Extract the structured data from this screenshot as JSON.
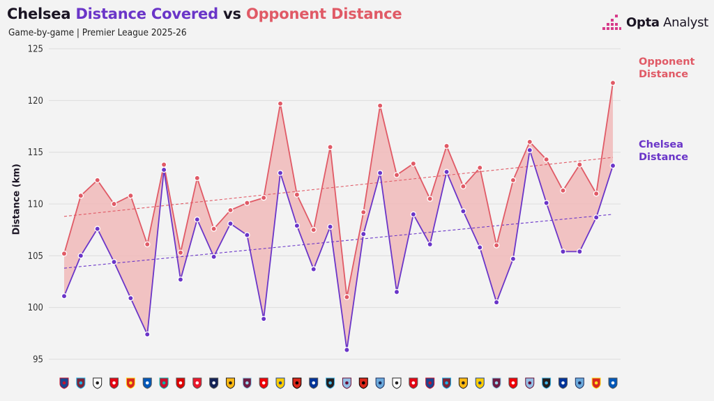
{
  "title": {
    "part1": "Chelsea ",
    "part2": "Distance Covered",
    "part3": " vs ",
    "part4": "Opponent Distance"
  },
  "subtitle": "Game-by-game | Premier League 2025-26",
  "logo": {
    "brand": "Opta",
    "suffix": " Analyst",
    "icon": "opta-bars-icon"
  },
  "colors": {
    "chelsea": "#6a35c8",
    "opponent": "#e05a66",
    "fill": "#f0b8b8",
    "trend_opp": "#e05a66",
    "trend_che": "#6a35c8"
  },
  "legend": {
    "opponent": [
      "Opponent",
      "Distance"
    ],
    "chelsea": [
      "Chelsea",
      "Distance"
    ]
  },
  "chart_data": {
    "type": "line",
    "ylabel": "Distance (km)",
    "ylim": [
      95,
      125
    ],
    "yticks": [
      95,
      100,
      105,
      110,
      115,
      120,
      125
    ],
    "grid": true,
    "x_icons": [
      "crystal-palace-crest-icon",
      "west-ham-crest-icon",
      "fulham-crest-icon",
      "brentford-crest-icon",
      "man-united-crest-icon",
      "brighton-crest-icon",
      "liverpool-crest-icon",
      "nottm-forest-crest-icon",
      "sunderland-crest-icon",
      "tottenham-crest-icon",
      "wolves-crest-icon",
      "burnley-crest-icon",
      "arsenal-crest-icon",
      "leeds-crest-icon",
      "bournemouth-crest-icon",
      "everton-crest-icon",
      "newcastle-crest-icon",
      "aston-villa-crest-icon",
      "bournemouth-crest-icon",
      "man-city-crest-icon",
      "fulham-crest-icon",
      "brentford-crest-icon",
      "crystal-palace-crest-icon",
      "west-ham-crest-icon",
      "wolves-crest-icon",
      "leeds-crest-icon",
      "burnley-crest-icon",
      "arsenal-crest-icon",
      "aston-villa-crest-icon",
      "newcastle-crest-icon",
      "everton-crest-icon",
      "man-city-crest-icon",
      "man-united-crest-icon",
      "brighton-crest-icon"
    ],
    "series": [
      {
        "name": "Opponent Distance",
        "values": [
          105.2,
          110.8,
          112.3,
          110.0,
          110.8,
          106.1,
          113.8,
          105.3,
          112.5,
          107.6,
          109.4,
          110.1,
          110.6,
          119.7,
          110.9,
          107.5,
          115.5,
          101.0,
          109.2,
          119.5,
          112.8,
          113.9,
          110.5,
          115.6,
          111.7,
          113.5,
          106.0,
          112.3,
          116.0,
          114.3,
          111.3,
          113.8,
          111.0,
          121.7
        ]
      },
      {
        "name": "Chelsea Distance",
        "values": [
          101.1,
          105.0,
          107.6,
          104.4,
          100.9,
          97.4,
          113.3,
          102.7,
          108.5,
          104.9,
          108.1,
          107.0,
          98.9,
          113.0,
          107.9,
          103.7,
          107.8,
          95.9,
          107.1,
          113.0,
          101.5,
          109.0,
          106.1,
          113.1,
          109.3,
          105.8,
          100.5,
          104.7,
          115.2,
          110.1,
          105.4,
          105.4,
          108.7,
          113.7
        ]
      }
    ],
    "trendlines": {
      "opponent": [
        108.8,
        114.5
      ],
      "chelsea": [
        103.8,
        109.0
      ]
    }
  }
}
